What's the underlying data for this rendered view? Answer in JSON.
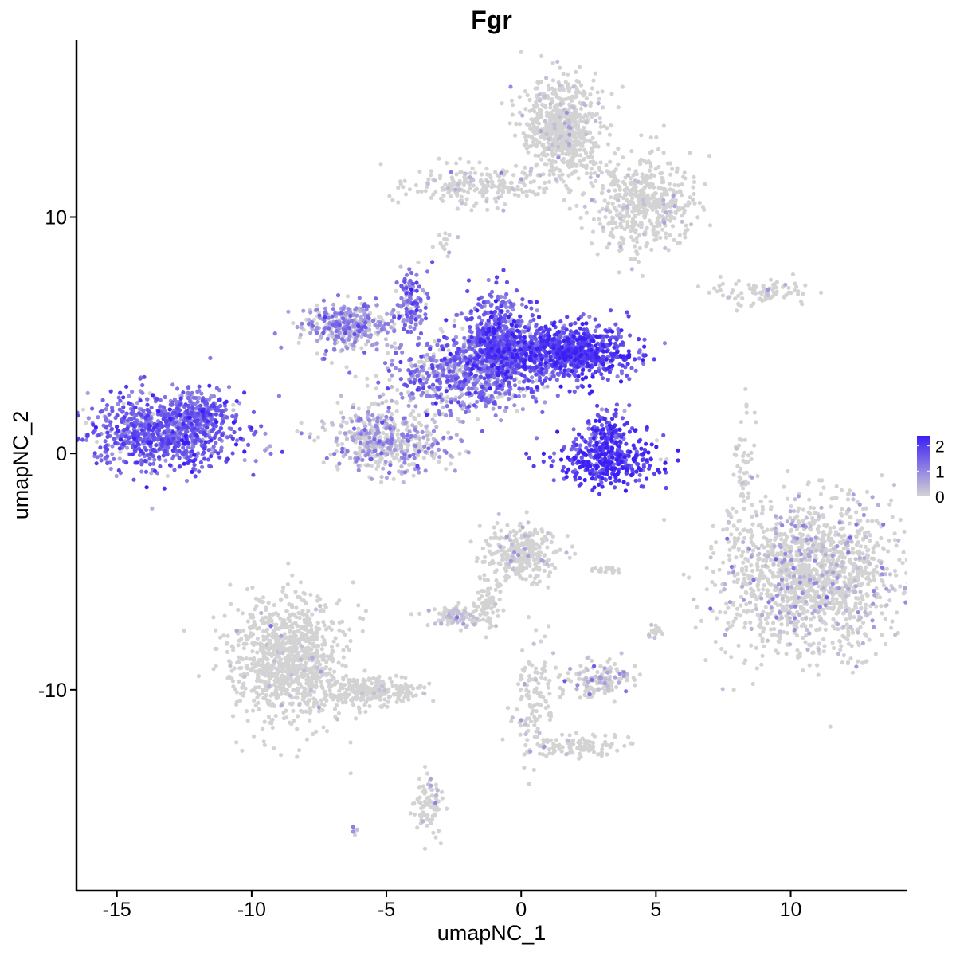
{
  "chart_data": {
    "type": "scatter",
    "title": "Fgr",
    "xlabel": "umapNC_1",
    "ylabel": "umapNC_2",
    "xlim": [
      -16.5,
      14.3
    ],
    "ylim": [
      -18.5,
      17.5
    ],
    "xticks": [
      -15,
      -10,
      -5,
      0,
      5,
      10
    ],
    "yticks": [
      -10,
      0,
      10
    ],
    "grid": false,
    "legend": {
      "placement": "right",
      "type": "colorbar",
      "title": "",
      "min": 0,
      "max": 2.4,
      "ticks": [
        0,
        1,
        2
      ],
      "low_color": "#d3d3d3",
      "high_color": "#3b1ff5"
    },
    "clusters": [
      {
        "name": "left-blob",
        "center": [
          -13.2,
          0.9
        ],
        "spread": [
          1.4,
          0.8
        ],
        "count": 900,
        "mean_expr": 1.5,
        "frac_expr": 0.95
      },
      {
        "name": "left-blob-tip",
        "center": [
          -11.9,
          1.8
        ],
        "spread": [
          0.5,
          0.4
        ],
        "count": 120,
        "mean_expr": 1.4,
        "frac_expr": 0.9
      },
      {
        "name": "central-right-lobe",
        "center": [
          1.6,
          4.3
        ],
        "spread": [
          1.3,
          0.6
        ],
        "count": 900,
        "mean_expr": 1.8,
        "frac_expr": 0.98
      },
      {
        "name": "central-upper-lobe",
        "center": [
          -0.9,
          4.8
        ],
        "spread": [
          0.6,
          1.0
        ],
        "count": 500,
        "mean_expr": 1.5,
        "frac_expr": 0.95
      },
      {
        "name": "central-body",
        "center": [
          -2.0,
          3.4
        ],
        "spread": [
          1.4,
          0.8
        ],
        "count": 700,
        "mean_expr": 1.2,
        "frac_expr": 0.8
      },
      {
        "name": "central-left-arm",
        "center": [
          -6.4,
          5.4
        ],
        "spread": [
          0.9,
          0.5
        ],
        "count": 350,
        "mean_expr": 0.9,
        "frac_expr": 0.7
      },
      {
        "name": "central-stalk",
        "center": [
          -4.0,
          6.4
        ],
        "spread": [
          0.3,
          0.8
        ],
        "count": 120,
        "mean_expr": 1.3,
        "frac_expr": 0.85
      },
      {
        "name": "central-lower-ring",
        "center": [
          -5.0,
          0.6
        ],
        "spread": [
          1.1,
          0.7
        ],
        "count": 500,
        "mean_expr": 0.7,
        "frac_expr": 0.55
      },
      {
        "name": "horseshoe",
        "center": [
          3.3,
          -0.3
        ],
        "spread": [
          1.0,
          0.5
        ],
        "count": 350,
        "mean_expr": 2.0,
        "frac_expr": 0.98
      },
      {
        "name": "horseshoe-top",
        "center": [
          3.2,
          0.9
        ],
        "spread": [
          0.4,
          0.5
        ],
        "count": 120,
        "mean_expr": 1.8,
        "frac_expr": 0.95
      },
      {
        "name": "top-main",
        "center": [
          1.5,
          13.8
        ],
        "spread": [
          0.7,
          1.0
        ],
        "count": 700,
        "mean_expr": 0.1,
        "frac_expr": 0.06
      },
      {
        "name": "top-right-arm",
        "center": [
          4.5,
          10.6
        ],
        "spread": [
          1.0,
          1.0
        ],
        "count": 500,
        "mean_expr": 0.1,
        "frac_expr": 0.06
      },
      {
        "name": "top-left-arm",
        "center": [
          -1.6,
          11.3
        ],
        "spread": [
          1.5,
          0.4
        ],
        "count": 220,
        "mean_expr": 0.2,
        "frac_expr": 0.1
      },
      {
        "name": "right-small-arm",
        "center": [
          8.8,
          6.8
        ],
        "spread": [
          0.9,
          0.3
        ],
        "count": 90,
        "mean_expr": 0.1,
        "frac_expr": 0.06
      },
      {
        "name": "big-right-blob",
        "center": [
          10.8,
          -5.2
        ],
        "spread": [
          1.6,
          1.6
        ],
        "count": 1500,
        "mean_expr": 0.4,
        "frac_expr": 0.15
      },
      {
        "name": "bottom-left-blob",
        "center": [
          -8.6,
          -8.8
        ],
        "spread": [
          1.1,
          1.3
        ],
        "count": 1000,
        "mean_expr": 0.1,
        "frac_expr": 0.03
      },
      {
        "name": "bottom-left-tail",
        "center": [
          -5.6,
          -10.0
        ],
        "spread": [
          1.0,
          0.3
        ],
        "count": 250,
        "mean_expr": 0.1,
        "frac_expr": 0.03
      },
      {
        "name": "bottom-left-drop",
        "center": [
          -3.4,
          -14.8
        ],
        "spread": [
          0.25,
          0.6
        ],
        "count": 90,
        "mean_expr": 0.2,
        "frac_expr": 0.08
      },
      {
        "name": "mid-bottom-cluster",
        "center": [
          0.0,
          -4.2
        ],
        "spread": [
          0.7,
          0.6
        ],
        "count": 300,
        "mean_expr": 0.2,
        "frac_expr": 0.08
      },
      {
        "name": "mid-bottom-stalk",
        "center": [
          -1.2,
          -6.1
        ],
        "spread": [
          0.3,
          0.6
        ],
        "count": 70,
        "mean_expr": 0.1,
        "frac_expr": 0.05
      },
      {
        "name": "mid-bottom-small",
        "center": [
          -2.3,
          -6.9
        ],
        "spread": [
          0.5,
          0.25
        ],
        "count": 100,
        "mean_expr": 0.3,
        "frac_expr": 0.15
      },
      {
        "name": "bottom-center-arm",
        "center": [
          0.4,
          -10.6
        ],
        "spread": [
          0.4,
          1.2
        ],
        "count": 120,
        "mean_expr": 0.1,
        "frac_expr": 0.04
      },
      {
        "name": "bottom-center-foot",
        "center": [
          2.2,
          -12.4
        ],
        "spread": [
          0.9,
          0.25
        ],
        "count": 100,
        "mean_expr": 0.1,
        "frac_expr": 0.04
      },
      {
        "name": "bottom-right-small",
        "center": [
          2.8,
          -9.5
        ],
        "spread": [
          0.6,
          0.4
        ],
        "count": 140,
        "mean_expr": 0.4,
        "frac_expr": 0.2
      },
      {
        "name": "thin-streak-right",
        "center": [
          8.3,
          -0.8
        ],
        "spread": [
          0.2,
          1.3
        ],
        "count": 50,
        "mean_expr": 0.2,
        "frac_expr": 0.1
      },
      {
        "name": "small-speck-a",
        "center": [
          5.0,
          -7.5
        ],
        "spread": [
          0.2,
          0.2
        ],
        "count": 20,
        "mean_expr": 0.2,
        "frac_expr": 0.1
      },
      {
        "name": "small-speck-b",
        "center": [
          3.0,
          -4.9
        ],
        "spread": [
          0.3,
          0.08
        ],
        "count": 20,
        "mean_expr": 0.1,
        "frac_expr": 0.05
      },
      {
        "name": "small-speck-c",
        "center": [
          -2.9,
          8.8
        ],
        "spread": [
          0.2,
          0.3
        ],
        "count": 15,
        "mean_expr": 0.3,
        "frac_expr": 0.2
      },
      {
        "name": "small-speck-d",
        "center": [
          -6.1,
          -16.0
        ],
        "spread": [
          0.1,
          0.1
        ],
        "count": 6,
        "mean_expr": 0.5,
        "frac_expr": 0.4
      },
      {
        "name": "small-speck-e",
        "center": [
          7.8,
          -2.7
        ],
        "spread": [
          0.1,
          0.3
        ],
        "count": 8,
        "mean_expr": 0.1,
        "frac_expr": 0.05
      }
    ]
  }
}
